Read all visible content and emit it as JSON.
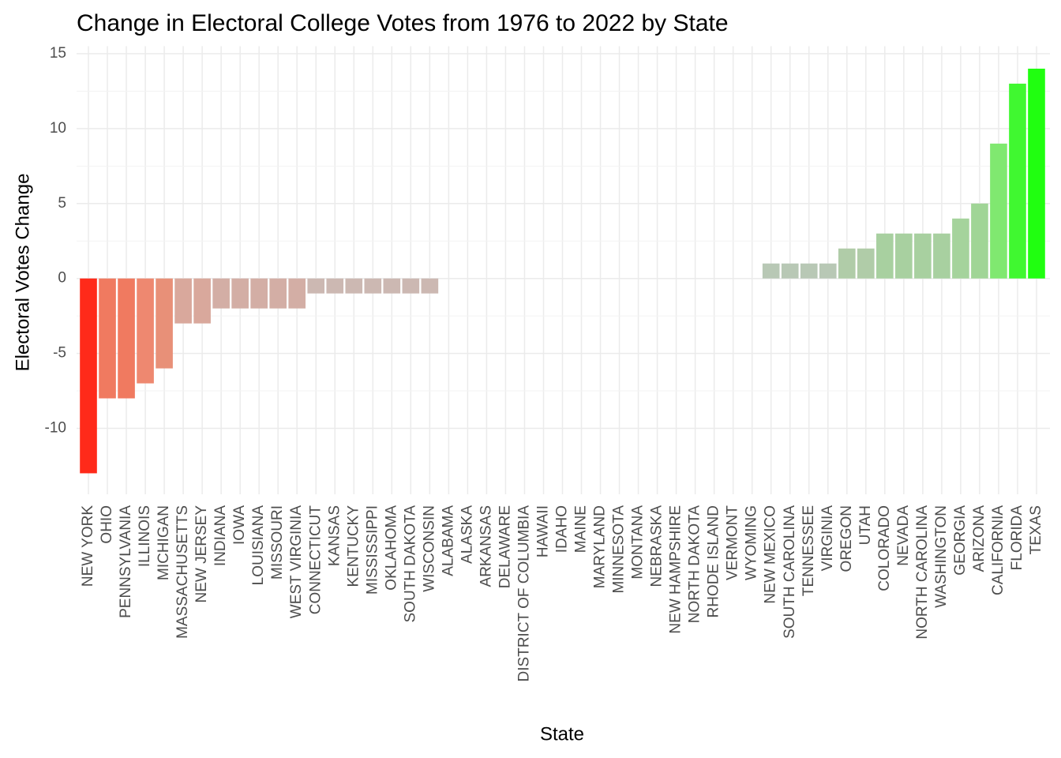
{
  "chart_data": {
    "type": "bar",
    "title": "Change in Electoral College Votes from 1976 to 2022 by State",
    "x_label": "State",
    "y_label": "Electoral Votes Change",
    "categories": [
      "NEW YORK",
      "OHIO",
      "PENNSYLVANIA",
      "ILLINOIS",
      "MICHIGAN",
      "MASSACHUSETTS",
      "NEW JERSEY",
      "INDIANA",
      "IOWA",
      "LOUISIANA",
      "MISSOURI",
      "WEST VIRGINIA",
      "CONNECTICUT",
      "KANSAS",
      "KENTUCKY",
      "MISSISSIPPI",
      "OKLAHOMA",
      "SOUTH DAKOTA",
      "WISCONSIN",
      "ALABAMA",
      "ALASKA",
      "ARKANSAS",
      "DELAWARE",
      "DISTRICT OF COLUMBIA",
      "HAWAII",
      "IDAHO",
      "MAINE",
      "MARYLAND",
      "MINNESOTA",
      "MONTANA",
      "NEBRASKA",
      "NEW HAMPSHIRE",
      "NORTH DAKOTA",
      "RHODE ISLAND",
      "VERMONT",
      "WYOMING",
      "NEW MEXICO",
      "SOUTH CAROLINA",
      "TENNESSEE",
      "VIRGINIA",
      "OREGON",
      "UTAH",
      "COLORADO",
      "NEVADA",
      "NORTH CAROLINA",
      "WASHINGTON",
      "GEORGIA",
      "ARIZONA",
      "CALIFORNIA",
      "FLORIDA",
      "TEXAS"
    ],
    "values": [
      -13,
      -8,
      -8,
      -7,
      -6,
      -3,
      -3,
      -2,
      -2,
      -2,
      -2,
      -2,
      -1,
      -1,
      -1,
      -1,
      -1,
      -1,
      -1,
      0,
      0,
      0,
      0,
      0,
      0,
      0,
      0,
      0,
      0,
      0,
      0,
      0,
      0,
      0,
      0,
      0,
      1,
      1,
      1,
      1,
      2,
      2,
      3,
      3,
      3,
      3,
      4,
      5,
      9,
      13,
      14
    ],
    "colors": [
      "#ff2a1a",
      "#f07a60",
      "#f07a60",
      "#ee8870",
      "#e89078",
      "#d9a89c",
      "#d9a89c",
      "#d3aea5",
      "#d3aea5",
      "#d3aea5",
      "#d3aea5",
      "#d3aea5",
      "#ccb8b2",
      "#ccb8b2",
      "#ccb8b2",
      "#ccb8b2",
      "#ccb8b2",
      "#ccb8b2",
      "#ccb8b2",
      "#c8c8c8",
      "#c8c8c8",
      "#c8c8c8",
      "#c8c8c8",
      "#c8c8c8",
      "#c8c8c8",
      "#c8c8c8",
      "#c8c8c8",
      "#c8c8c8",
      "#c8c8c8",
      "#c8c8c8",
      "#c8c8c8",
      "#c8c8c8",
      "#c8c8c8",
      "#c8c8c8",
      "#c8c8c8",
      "#c8c8c8",
      "#b8c8b5",
      "#b8c8b5",
      "#b8c8b5",
      "#b8c8b5",
      "#b0cca8",
      "#b0cca8",
      "#a8d0a0",
      "#a8d0a0",
      "#a8d0a0",
      "#a8d0a0",
      "#a5d39c",
      "#a0d596",
      "#80e870",
      "#40f830",
      "#20ff10"
    ],
    "ylim": [
      -14.4,
      15.5
    ],
    "yticks": [
      -10,
      -5,
      0,
      5,
      10,
      15
    ],
    "grid": true
  }
}
